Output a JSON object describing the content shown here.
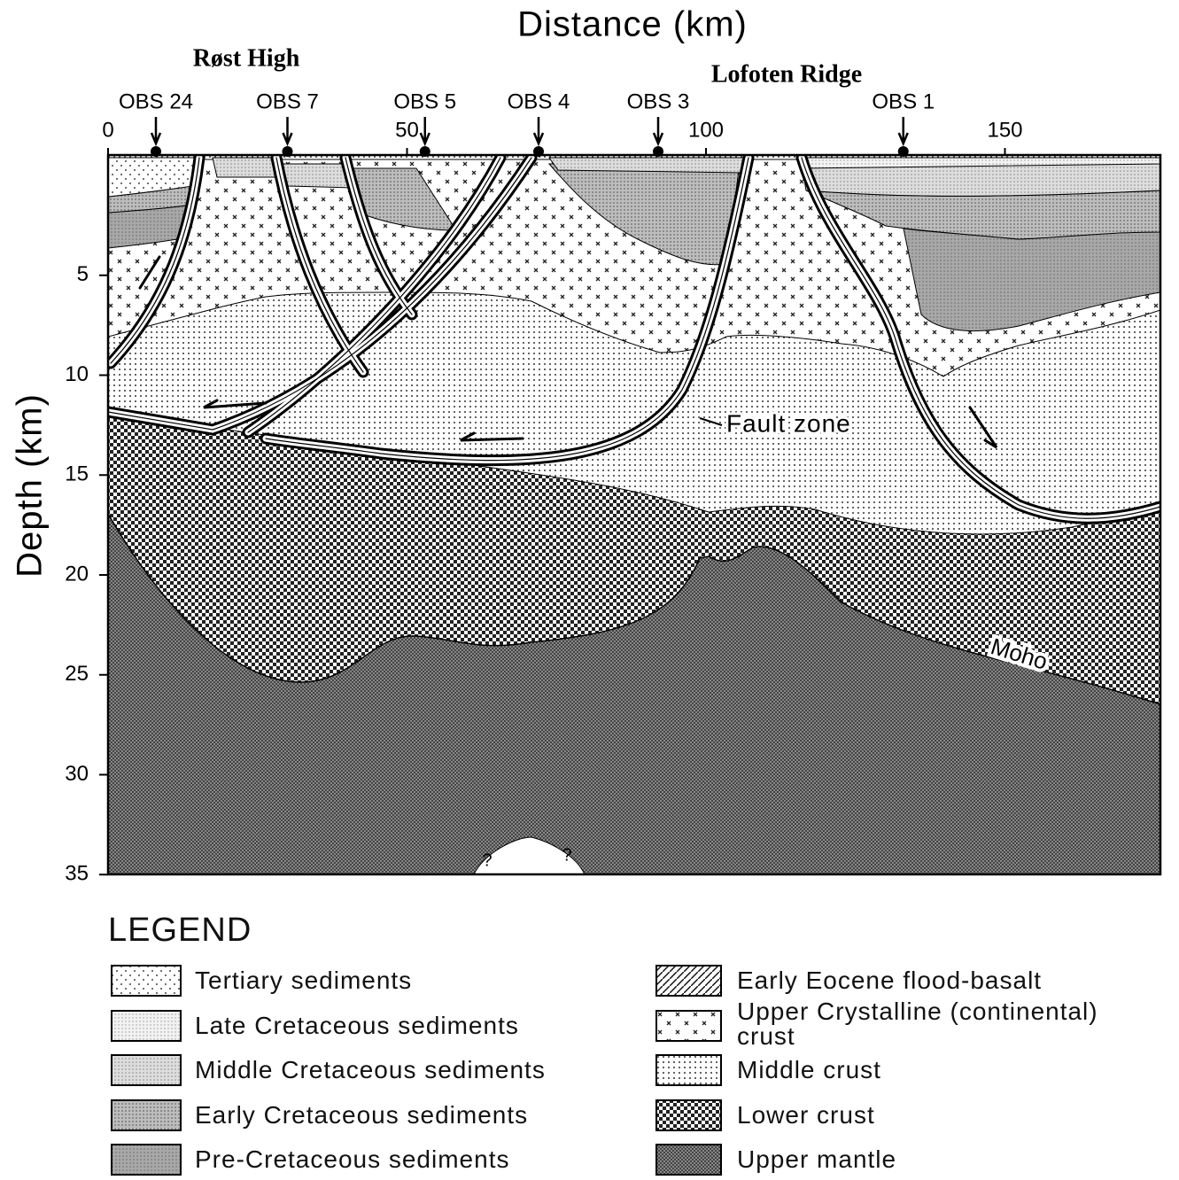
{
  "title": "Distance (km)",
  "y_axis_label": "Depth (km)",
  "x_axis": {
    "ticks": [
      0,
      50,
      100,
      150
    ]
  },
  "y_axis": {
    "ticks": [
      5,
      10,
      15,
      20,
      25,
      30,
      35
    ]
  },
  "place_labels": [
    "Røst High",
    "Lofoten Ridge"
  ],
  "stations": [
    {
      "label": "OBS 24",
      "distance": 8
    },
    {
      "label": "OBS 7",
      "distance": 30
    },
    {
      "label": "OBS 5",
      "distance": 53
    },
    {
      "label": "OBS 4",
      "distance": 72
    },
    {
      "label": "OBS 3",
      "distance": 92
    },
    {
      "label": "OBS 1",
      "distance": 133
    }
  ],
  "annotations": {
    "fault_zone": "Fault zone",
    "moho": "Moho",
    "unknown": [
      "?",
      "?"
    ]
  },
  "legend": {
    "title": "LEGEND",
    "items": [
      "Tertiary sediments",
      "Late Cretaceous sediments",
      "Middle Cretaceous sediments",
      "Early Cretaceous sediments",
      "Pre-Cretaceous sediments",
      "Early Eocene flood-basalt",
      "Upper Crystalline (continental) crust",
      "Middle crust",
      "Lower crust",
      "Upper mantle"
    ]
  }
}
